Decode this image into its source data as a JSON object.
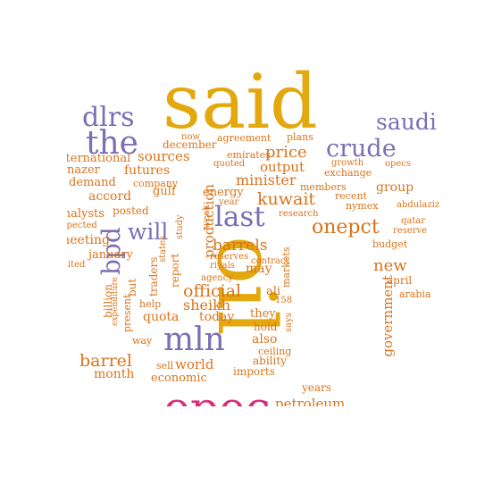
{
  "colors": {
    "gold": "#e3a80d",
    "orange": "#d9741c",
    "purple": "#7b6fb5",
    "magenta": "#d62e7c"
  },
  "words": [
    {
      "key": "said",
      "text": "said",
      "color": "gold"
    },
    {
      "key": "oil",
      "text": "oil",
      "color": "gold"
    },
    {
      "key": "opec",
      "text": "opec",
      "color": "magenta"
    },
    {
      "key": "the",
      "text": "the",
      "color": "purple"
    },
    {
      "key": "dlrs",
      "text": "dlrs",
      "color": "purple"
    },
    {
      "key": "saudi",
      "text": "saudi",
      "color": "purple"
    },
    {
      "key": "crude",
      "text": "crude",
      "color": "purple"
    },
    {
      "key": "last",
      "text": "last",
      "color": "purple"
    },
    {
      "key": "will",
      "text": "will",
      "color": "purple"
    },
    {
      "key": "mln",
      "text": "mln",
      "color": "purple"
    },
    {
      "key": "bpd",
      "text": "bpd",
      "color": "purple"
    },
    {
      "key": "onepct",
      "text": "onepct",
      "color": "orange"
    },
    {
      "key": "price",
      "text": "price",
      "color": "orange"
    },
    {
      "key": "kuwait",
      "text": "kuwait",
      "color": "orange"
    },
    {
      "key": "minister",
      "text": "minister",
      "color": "orange"
    },
    {
      "key": "output",
      "text": "output",
      "color": "orange"
    },
    {
      "key": "barrels",
      "text": "barrels",
      "color": "orange"
    },
    {
      "key": "official",
      "text": "official",
      "color": "orange"
    },
    {
      "key": "sheikh",
      "text": "sheikh",
      "color": "orange"
    },
    {
      "key": "barrel",
      "text": "barrel",
      "color": "orange"
    },
    {
      "key": "world",
      "text": "world",
      "color": "orange"
    },
    {
      "key": "new",
      "text": "new",
      "color": "orange"
    },
    {
      "key": "government",
      "text": "government",
      "color": "orange"
    },
    {
      "key": "production",
      "text": "production",
      "color": "orange"
    },
    {
      "key": "sources",
      "text": "sources",
      "color": "orange"
    },
    {
      "key": "futures",
      "text": "futures",
      "color": "orange"
    },
    {
      "key": "accord",
      "text": "accord",
      "color": "orange"
    },
    {
      "key": "demand",
      "text": "demand",
      "color": "orange"
    },
    {
      "key": "international",
      "text": "international",
      "color": "orange"
    },
    {
      "key": "nazer",
      "text": "nazer",
      "color": "orange"
    },
    {
      "key": "analysts",
      "text": "analysts",
      "color": "orange"
    },
    {
      "key": "posted",
      "text": "posted",
      "color": "orange"
    },
    {
      "key": "meeting",
      "text": "meeting",
      "color": "orange"
    },
    {
      "key": "january",
      "text": "january",
      "color": "orange"
    },
    {
      "key": "quota",
      "text": "quota",
      "color": "orange"
    },
    {
      "key": "today",
      "text": "today",
      "color": "orange"
    },
    {
      "key": "month",
      "text": "month",
      "color": "orange"
    },
    {
      "key": "economic",
      "text": "economic",
      "color": "orange"
    },
    {
      "key": "imports",
      "text": "imports",
      "color": "orange"
    },
    {
      "key": "ability",
      "text": "ability",
      "color": "orange"
    },
    {
      "key": "also",
      "text": "also",
      "color": "orange"
    },
    {
      "key": "hold",
      "text": "hold",
      "color": "orange"
    },
    {
      "key": "ceiling",
      "text": "ceiling",
      "color": "orange"
    },
    {
      "key": "they",
      "text": "they",
      "color": "orange"
    },
    {
      "key": "may",
      "text": "may",
      "color": "orange"
    },
    {
      "key": "group",
      "text": "group",
      "color": "orange"
    },
    {
      "key": "members",
      "text": "members",
      "color": "orange"
    },
    {
      "key": "recent",
      "text": "recent",
      "color": "orange"
    },
    {
      "key": "exchange",
      "text": "exchange",
      "color": "orange"
    },
    {
      "key": "growth",
      "text": "growth",
      "color": "orange"
    },
    {
      "key": "opecs",
      "text": "opecs",
      "color": "orange"
    },
    {
      "key": "nymex",
      "text": "nymex",
      "color": "orange"
    },
    {
      "key": "abdulaziz",
      "text": "abdulaziz",
      "color": "orange"
    },
    {
      "key": "qatar",
      "text": "qatar",
      "color": "orange"
    },
    {
      "key": "reserve",
      "text": "reserve",
      "color": "orange"
    },
    {
      "key": "budget",
      "text": "budget",
      "color": "orange"
    },
    {
      "key": "april",
      "text": "april",
      "color": "orange"
    },
    {
      "key": "arabia",
      "text": "arabia",
      "color": "orange"
    },
    {
      "key": "years",
      "text": "years",
      "color": "orange"
    },
    {
      "key": "petroleum",
      "text": "petroleum",
      "color": "orange"
    },
    {
      "key": "research",
      "text": "research",
      "color": "orange"
    },
    {
      "key": "markets",
      "text": "markets",
      "color": "orange"
    },
    {
      "key": "says",
      "text": "says",
      "color": "orange"
    },
    {
      "key": "ali",
      "text": "ali",
      "color": "orange"
    },
    {
      "key": "n158",
      "text": "158",
      "color": "orange"
    },
    {
      "key": "contract",
      "text": "contract",
      "color": "orange"
    },
    {
      "key": "reserves",
      "text": "reserves",
      "color": "orange"
    },
    {
      "key": "riyals",
      "text": "riyals",
      "color": "orange"
    },
    {
      "key": "agency",
      "text": "agency",
      "color": "orange"
    },
    {
      "key": "report",
      "text": "report",
      "color": "orange"
    },
    {
      "key": "traders",
      "text": "traders",
      "color": "orange"
    },
    {
      "key": "help",
      "text": "help",
      "color": "orange"
    },
    {
      "key": "but",
      "text": "but",
      "color": "orange"
    },
    {
      "key": "billion",
      "text": "billion",
      "color": "orange"
    },
    {
      "key": "expenditure",
      "text": "expenditure",
      "color": "orange"
    },
    {
      "key": "present",
      "text": "present",
      "color": "orange"
    },
    {
      "key": "way",
      "text": "way",
      "color": "orange"
    },
    {
      "key": "sell",
      "text": "sell",
      "color": "orange"
    },
    {
      "key": "study",
      "text": "study",
      "color": "orange"
    },
    {
      "key": "states",
      "text": "states",
      "color": "orange"
    },
    {
      "key": "week",
      "text": "week",
      "color": "orange"
    },
    {
      "key": "year",
      "text": "year",
      "color": "orange"
    },
    {
      "key": "energy",
      "text": "energy",
      "color": "orange"
    },
    {
      "key": "gulf",
      "text": "gulf",
      "color": "orange"
    },
    {
      "key": "company",
      "text": "company",
      "color": "orange"
    },
    {
      "key": "quoted",
      "text": "quoted",
      "color": "orange"
    },
    {
      "key": "emirates",
      "text": "emirates",
      "color": "orange"
    },
    {
      "key": "december",
      "text": "december",
      "color": "orange"
    },
    {
      "key": "now",
      "text": "now",
      "color": "orange"
    },
    {
      "key": "agreement",
      "text": "agreement",
      "color": "orange"
    },
    {
      "key": "plans",
      "text": "plans",
      "color": "orange"
    },
    {
      "key": "limited",
      "text": "limited",
      "color": "orange"
    },
    {
      "key": "expected",
      "text": "expected",
      "color": "orange"
    }
  ]
}
